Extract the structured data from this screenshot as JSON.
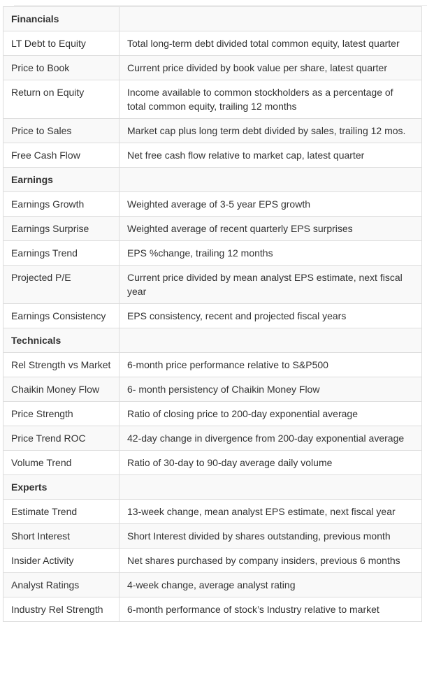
{
  "sections": [
    {
      "title": "Financials",
      "rows": [
        {
          "label": "LT Debt to Equity",
          "desc": "Total long-term debt divided total common equity, latest quarter"
        },
        {
          "label": "Price to Book",
          "desc": "Current price divided by book value per share, latest quarter"
        },
        {
          "label": "Return on Equity",
          "desc": "Income available to common stockholders as a percentage of total common equity, trailing 12 months"
        },
        {
          "label": "Price to Sales",
          "desc": "Market cap plus long term debt divided by sales, trailing 12 mos."
        },
        {
          "label": "Free Cash Flow",
          "desc": "Net free cash flow relative to market cap, latest quarter"
        }
      ]
    },
    {
      "title": "Earnings",
      "rows": [
        {
          "label": "Earnings Growth",
          "desc": "Weighted average of 3-5 year EPS growth"
        },
        {
          "label": "Earnings Surprise",
          "desc": "Weighted average of recent quarterly EPS surprises"
        },
        {
          "label": "Earnings Trend",
          "desc": "EPS %change, trailing 12 months"
        },
        {
          "label": "Projected P/E",
          "desc": "Current price divided by mean analyst EPS estimate, next fiscal year"
        },
        {
          "label": "Earnings Consistency",
          "desc": "EPS consistency, recent and projected fiscal years"
        }
      ]
    },
    {
      "title": "Technicals",
      "rows": [
        {
          "label": "Rel Strength vs Market",
          "desc": "6-month price performance relative to S&P500"
        },
        {
          "label": "Chaikin Money Flow",
          "desc": "6- month persistency of Chaikin Money Flow"
        },
        {
          "label": "Price Strength",
          "desc": "Ratio of closing price to 200-day exponential average"
        },
        {
          "label": "Price Trend ROC",
          "desc": "42-day change in divergence from 200-day exponential average"
        },
        {
          "label": "Volume Trend",
          "desc": "Ratio of 30-day to 90-day average daily volume"
        }
      ]
    },
    {
      "title": "Experts",
      "rows": [
        {
          "label": "Estimate Trend",
          "desc": "13-week change, mean analyst EPS estimate, next fiscal year"
        },
        {
          "label": "Short Interest",
          "desc": "Short Interest divided by shares outstanding, previous month"
        },
        {
          "label": "Insider Activity",
          "desc": "Net shares purchased by company insiders, previous 6 months"
        },
        {
          "label": "Analyst Ratings",
          "desc": "4-week change, average analyst rating"
        },
        {
          "label": "Industry Rel Strength",
          "desc": "6-month performance of stock’s Industry relative to market"
        }
      ]
    }
  ]
}
